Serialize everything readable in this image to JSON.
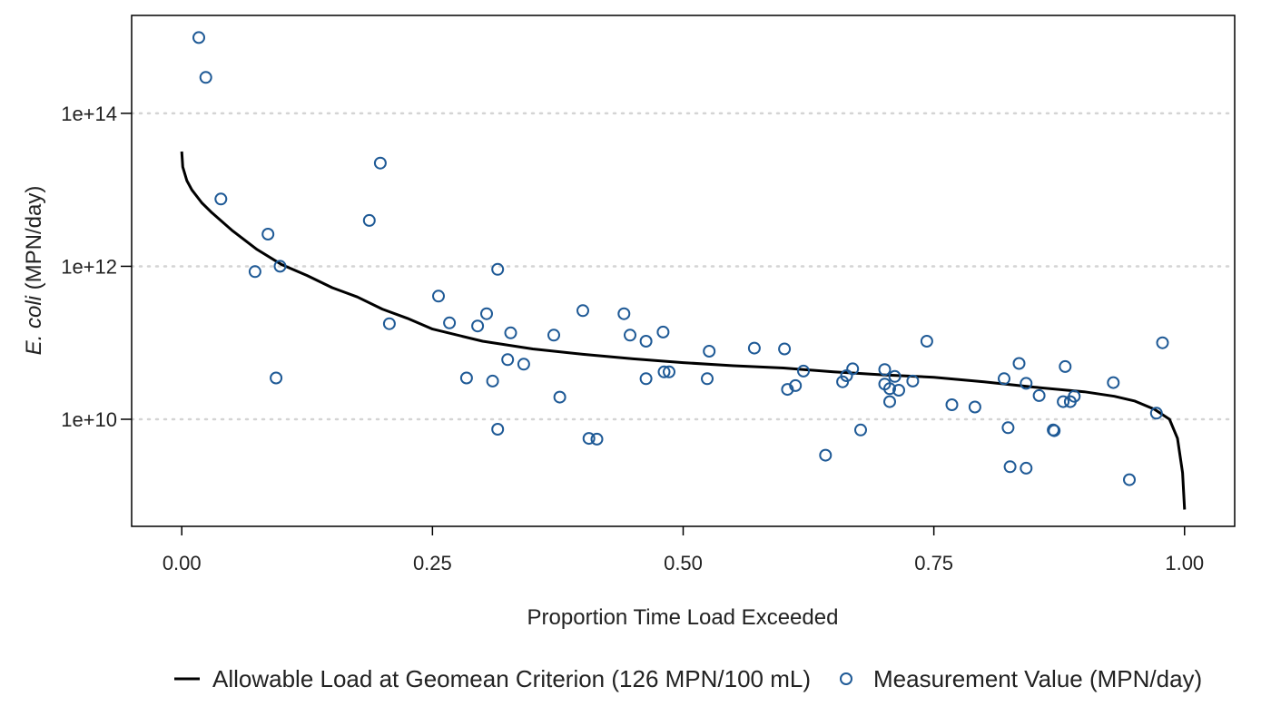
{
  "chart_data": {
    "type": "scatter",
    "x_label": "Proportion Time Load Exceeded",
    "y_label_italic": "E. coli",
    "y_label_rest": " (MPN/day)",
    "x_range": [
      -0.05,
      1.05
    ],
    "y_scale": "log10",
    "y_range_log10": [
      8.6,
      15.28
    ],
    "x_ticks": [
      {
        "value": 0.0,
        "label": "0.00"
      },
      {
        "value": 0.25,
        "label": "0.25"
      },
      {
        "value": 0.5,
        "label": "0.50"
      },
      {
        "value": 0.75,
        "label": "0.75"
      },
      {
        "value": 1.0,
        "label": "1.00"
      }
    ],
    "y_ticks": [
      {
        "log10": 10,
        "label": "1e+10"
      },
      {
        "log10": 12,
        "label": "1e+12"
      },
      {
        "log10": 14,
        "label": "1e+14"
      }
    ],
    "grid": "horizontal dotted at y ticks",
    "legend_position": "bottom",
    "series": [
      {
        "name": "Allowable Load at Geomean Criterion (126 MPN/100 mL)",
        "kind": "line",
        "color": "#000000",
        "points": [
          [
            0.0,
            13.5
          ],
          [
            0.001,
            13.3
          ],
          [
            0.005,
            13.12
          ],
          [
            0.01,
            13.0
          ],
          [
            0.02,
            12.83
          ],
          [
            0.03,
            12.7
          ],
          [
            0.05,
            12.47
          ],
          [
            0.075,
            12.22
          ],
          [
            0.1,
            12.02
          ],
          [
            0.125,
            11.88
          ],
          [
            0.15,
            11.72
          ],
          [
            0.175,
            11.6
          ],
          [
            0.2,
            11.44
          ],
          [
            0.225,
            11.32
          ],
          [
            0.25,
            11.18
          ],
          [
            0.3,
            11.02
          ],
          [
            0.35,
            10.92
          ],
          [
            0.4,
            10.85
          ],
          [
            0.45,
            10.79
          ],
          [
            0.5,
            10.74
          ],
          [
            0.55,
            10.7
          ],
          [
            0.6,
            10.67
          ],
          [
            0.65,
            10.62
          ],
          [
            0.7,
            10.58
          ],
          [
            0.75,
            10.55
          ],
          [
            0.8,
            10.49
          ],
          [
            0.85,
            10.42
          ],
          [
            0.9,
            10.36
          ],
          [
            0.93,
            10.3
          ],
          [
            0.95,
            10.24
          ],
          [
            0.97,
            10.13
          ],
          [
            0.985,
            10.0
          ],
          [
            0.993,
            9.75
          ],
          [
            0.998,
            9.3
          ],
          [
            1.0,
            8.82
          ]
        ]
      },
      {
        "name": "Measurement Value (MPN/day)",
        "kind": "points",
        "color": "#1f5a96",
        "points": [
          [
            0.017,
            14.99
          ],
          [
            0.024,
            14.47
          ],
          [
            0.039,
            12.88
          ],
          [
            0.073,
            11.93
          ],
          [
            0.086,
            12.42
          ],
          [
            0.094,
            10.54
          ],
          [
            0.098,
            12.0
          ],
          [
            0.187,
            12.6
          ],
          [
            0.198,
            13.35
          ],
          [
            0.207,
            11.25
          ],
          [
            0.256,
            11.61
          ],
          [
            0.267,
            11.26
          ],
          [
            0.284,
            10.54
          ],
          [
            0.295,
            11.22
          ],
          [
            0.304,
            11.38
          ],
          [
            0.31,
            10.5
          ],
          [
            0.315,
            11.96
          ],
          [
            0.315,
            9.87
          ],
          [
            0.325,
            10.78
          ],
          [
            0.328,
            11.13
          ],
          [
            0.341,
            10.72
          ],
          [
            0.371,
            11.1
          ],
          [
            0.377,
            10.29
          ],
          [
            0.406,
            9.75
          ],
          [
            0.4,
            11.42
          ],
          [
            0.414,
            9.74
          ],
          [
            0.441,
            11.38
          ],
          [
            0.447,
            11.1
          ],
          [
            0.463,
            11.02
          ],
          [
            0.463,
            10.53
          ],
          [
            0.48,
            11.14
          ],
          [
            0.481,
            10.62
          ],
          [
            0.486,
            10.62
          ],
          [
            0.524,
            10.53
          ],
          [
            0.526,
            10.89
          ],
          [
            0.571,
            10.93
          ],
          [
            0.601,
            10.92
          ],
          [
            0.604,
            10.39
          ],
          [
            0.612,
            10.44
          ],
          [
            0.62,
            10.63
          ],
          [
            0.659,
            10.49
          ],
          [
            0.663,
            10.57
          ],
          [
            0.669,
            10.66
          ],
          [
            0.677,
            9.86
          ],
          [
            0.642,
            9.53
          ],
          [
            0.701,
            10.65
          ],
          [
            0.701,
            10.46
          ],
          [
            0.706,
            10.4
          ],
          [
            0.706,
            10.23
          ],
          [
            0.711,
            10.56
          ],
          [
            0.715,
            10.38
          ],
          [
            0.729,
            10.5
          ],
          [
            0.743,
            11.02
          ],
          [
            0.768,
            10.19
          ],
          [
            0.791,
            10.16
          ],
          [
            0.82,
            10.53
          ],
          [
            0.824,
            9.89
          ],
          [
            0.826,
            9.38
          ],
          [
            0.835,
            10.73
          ],
          [
            0.842,
            10.47
          ],
          [
            0.842,
            9.36
          ],
          [
            0.855,
            10.31
          ],
          [
            0.869,
            9.86
          ],
          [
            0.87,
            9.85
          ],
          [
            0.879,
            10.23
          ],
          [
            0.881,
            10.69
          ],
          [
            0.886,
            10.23
          ],
          [
            0.89,
            10.3
          ],
          [
            0.929,
            10.48
          ],
          [
            0.945,
            9.21
          ],
          [
            0.972,
            10.08
          ],
          [
            0.978,
            11.0
          ]
        ]
      }
    ]
  }
}
